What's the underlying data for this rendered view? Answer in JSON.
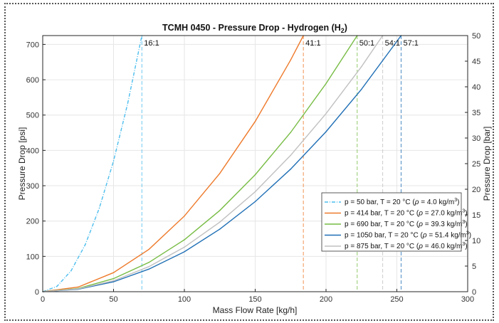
{
  "chart_data": {
    "type": "line",
    "title_main": "TCMH 0450 - Pressure Drop - Hydrogen (H",
    "title_sub": "2",
    "title_close": ")",
    "xlabel": "Mass Flow Rate [kg/h]",
    "ylabel_left": "Pressure Drop [psi]",
    "ylabel_right": "Pressure Drop [bar]",
    "xlim": [
      0,
      300
    ],
    "ylim_left": [
      0,
      725
    ],
    "ylim_right": [
      0,
      50
    ],
    "x_ticks": [
      "0",
      "50",
      "100",
      "150",
      "200",
      "250",
      "300"
    ],
    "y_ticks_left": [
      "0",
      "100",
      "200",
      "300",
      "400",
      "500",
      "600",
      "700"
    ],
    "y_ticks_right": [
      "0",
      "5",
      "10",
      "15",
      "20",
      "25",
      "30",
      "35",
      "40",
      "45",
      "50"
    ],
    "grid": true,
    "legend_position": "right",
    "series": [
      {
        "label_a": "p = 50 bar, T = 20 °C (",
        "label_b": "ρ",
        "label_c": " = 4.0 kg/m",
        "label_d": "3",
        "label_e": ")",
        "color": "#4DBEEE",
        "style": "dashdot",
        "x_max": 70,
        "ratio": "16:1",
        "x": [
          0,
          10,
          20,
          30,
          40,
          50,
          60,
          70
        ],
        "y": [
          0,
          15,
          59,
          133,
          237,
          370,
          533,
          725
        ]
      },
      {
        "label_a": "p = 414 bar, T = 20 °C (",
        "label_b": "ρ",
        "label_c": " = 27.0 kg/m",
        "label_d": "3",
        "label_e": ")",
        "color": "#EE7A2B",
        "style": "solid",
        "x_max": 184,
        "ratio": "41:1",
        "x": [
          0,
          25,
          50,
          75,
          100,
          125,
          150,
          175,
          184
        ],
        "y": [
          0,
          13,
          54,
          120,
          214,
          335,
          482,
          656,
          725
        ]
      },
      {
        "label_a": "p = 690 bar, T = 20 °C (",
        "label_b": "ρ",
        "label_c": " = 39.3 kg/m",
        "label_d": "3",
        "label_e": ")",
        "color": "#77BC44",
        "style": "solid",
        "x_max": 222,
        "ratio": "50:1",
        "x": [
          0,
          25,
          50,
          75,
          100,
          125,
          150,
          175,
          200,
          222
        ],
        "y": [
          0,
          9,
          37,
          83,
          147,
          230,
          331,
          451,
          589,
          725
        ]
      },
      {
        "label_a": "p = 1050 bar, T = 20 °C (",
        "label_b": "ρ",
        "label_c": " = 51.4 kg/m",
        "label_d": "3",
        "label_e": ")",
        "color": "#1F6FB5",
        "style": "solid",
        "x_max": 253,
        "ratio": "57:1",
        "x": [
          0,
          25,
          50,
          75,
          100,
          125,
          150,
          175,
          200,
          225,
          253
        ],
        "y": [
          0,
          7,
          28,
          64,
          113,
          177,
          255,
          347,
          453,
          573,
          725
        ]
      },
      {
        "label_a": "p = 875 bar, T = 20 °C (",
        "label_b": "ρ",
        "label_c": " = 46.0 kg/m",
        "label_d": "3",
        "label_e": ")",
        "color": "#C0C0C0",
        "style": "solid",
        "x_max": 240,
        "ratio": "54:1",
        "x": [
          0,
          25,
          50,
          75,
          100,
          125,
          150,
          175,
          200,
          225,
          240
        ],
        "y": [
          0,
          8,
          31,
          71,
          126,
          197,
          283,
          386,
          504,
          637,
          725
        ]
      }
    ]
  }
}
